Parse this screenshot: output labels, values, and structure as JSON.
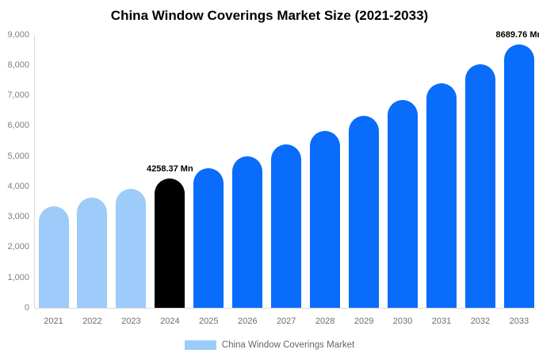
{
  "chart_data": {
    "type": "bar",
    "title": "China Window Coverings Market Size (2021-2033)",
    "categories": [
      "2021",
      "2022",
      "2023",
      "2024",
      "2025",
      "2026",
      "2027",
      "2028",
      "2029",
      "2030",
      "2031",
      "2032",
      "2033"
    ],
    "values": [
      3357,
      3634,
      3934,
      4258.37,
      4610,
      4990,
      5401,
      5847,
      6329,
      6851,
      7416,
      8028,
      8689.76
    ],
    "roles": [
      "historical",
      "historical",
      "historical",
      "highlight",
      "forecast",
      "forecast",
      "forecast",
      "forecast",
      "forecast",
      "forecast",
      "forecast",
      "forecast",
      "forecast"
    ],
    "colors": {
      "historical": "#9DCBFA",
      "highlight": "#000000",
      "forecast": "#0A6CFA"
    },
    "annotations": [
      {
        "index": 3,
        "text": "4258.37 Mn"
      },
      {
        "index": 12,
        "text": "8689.76 Mn"
      }
    ],
    "ylim": [
      0,
      9000
    ],
    "ytick_step": 1000,
    "ytick_labels": [
      "0",
      "1,000",
      "2,000",
      "3,000",
      "4,000",
      "5,000",
      "6,000",
      "7,000",
      "8,000",
      "9,000"
    ],
    "grid": false,
    "legend": {
      "position": "bottom",
      "items": [
        {
          "label": "China Window Coverings Market",
          "color": "#9DCBFA"
        }
      ]
    }
  }
}
